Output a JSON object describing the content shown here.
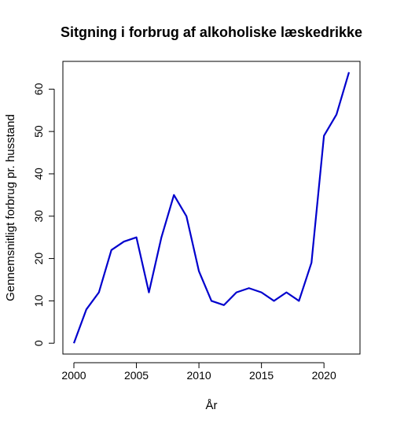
{
  "chart_data": {
    "type": "line",
    "title": "Sitgning i forbrug af alkoholiske læskedrikke",
    "xlabel": "År",
    "ylabel": "Gennemsnitligt forbrug pr. husstand",
    "x": [
      2000,
      2001,
      2002,
      2003,
      2004,
      2005,
      2006,
      2007,
      2008,
      2009,
      2010,
      2011,
      2012,
      2013,
      2014,
      2015,
      2016,
      2017,
      2018,
      2019,
      2020,
      2021,
      2022
    ],
    "series": [
      {
        "values": [
          0,
          8,
          12,
          22,
          24,
          25,
          12,
          25,
          35,
          30,
          17,
          10,
          9,
          12,
          13,
          12,
          10,
          12,
          10,
          19,
          49,
          54,
          64
        ],
        "color": "#0000CD"
      }
    ],
    "xlim": [
      1999.12,
      2022.88
    ],
    "ylim": [
      -2.56,
      66.56
    ],
    "xticks": [
      "2000",
      "2005",
      "2010",
      "2015",
      "2020"
    ],
    "yticks": [
      "0",
      "10",
      "20",
      "30",
      "40",
      "50",
      "60"
    ],
    "grid": false,
    "legend": "none"
  }
}
